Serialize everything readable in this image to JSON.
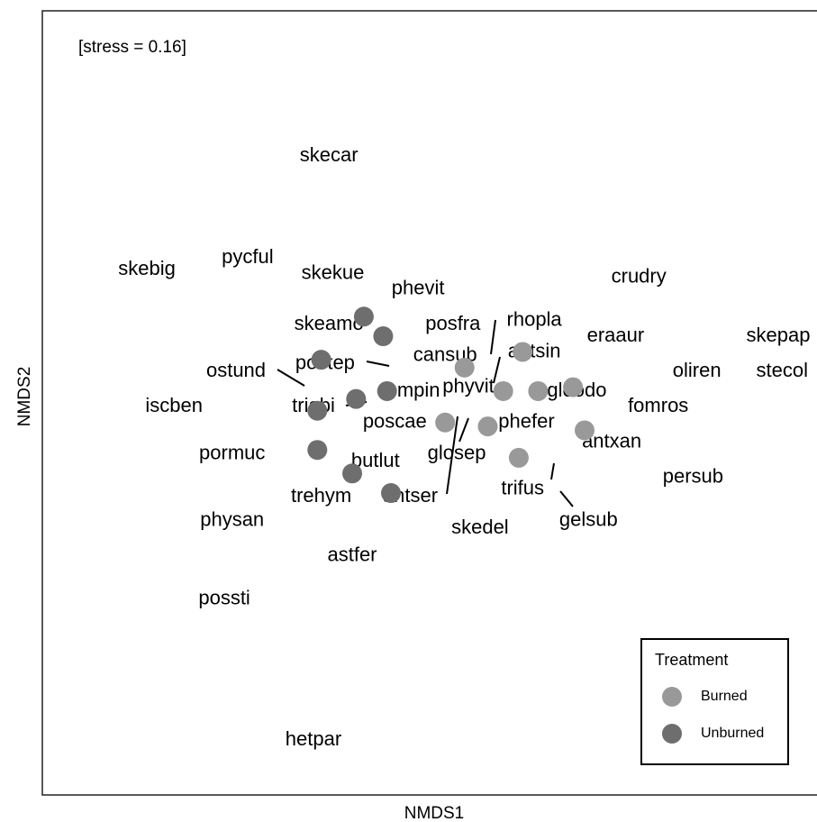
{
  "chart_data": {
    "type": "scatter",
    "annotation": "[stress = 0.16]",
    "xlabel": "NMDS1",
    "ylabel": "NMDS2",
    "xlim": [
      -1,
      1
    ],
    "ylim": [
      -1,
      1
    ],
    "legend_title": "Treatment",
    "legend": "bottom-right",
    "series": [
      {
        "name": "Burned",
        "color": "#999999",
        "x": [
          0.09,
          0.24,
          0.19,
          0.28,
          0.37,
          0.04,
          0.15,
          0.4,
          0.23
        ],
        "values": [
          0.09,
          0.13,
          0.03,
          0.03,
          0.04,
          -0.05,
          -0.06,
          -0.07,
          -0.14
        ]
      },
      {
        "name": "Unburned",
        "color": "#6e6e6e",
        "x": [
          -0.17,
          -0.12,
          -0.28,
          -0.11,
          -0.19,
          -0.29,
          -0.29,
          -0.2,
          -0.1
        ],
        "values": [
          0.22,
          0.17,
          0.11,
          0.03,
          0.01,
          -0.02,
          -0.12,
          -0.18,
          -0.23
        ]
      }
    ],
    "species": {
      "labels": [
        "skecar",
        "skebig",
        "pycful",
        "skekue",
        "phevit",
        "crudry",
        "skeamo",
        "posfra",
        "rhopla",
        "eraaur",
        "skepap",
        "cansub",
        "antsin",
        "postep",
        "ostund",
        "oliren",
        "stecol",
        "fompin",
        "phyvit",
        "gloodo",
        "iscben",
        "triabi",
        "fomros",
        "poscae",
        "phefer",
        "antxan",
        "glosep",
        "pormuc",
        "butlut",
        "persub",
        "trifus",
        "trehym",
        "antser",
        "gelsub",
        "skedel",
        "physan",
        "astfer",
        "possti",
        "hetpar"
      ],
      "x": [
        -0.26,
        -0.73,
        -0.47,
        -0.25,
        -0.03,
        0.54,
        -0.26,
        0.06,
        0.27,
        0.48,
        0.9,
        0.04,
        0.27,
        -0.27,
        -0.5,
        0.69,
        0.91,
        -0.05,
        0.1,
        0.38,
        -0.66,
        -0.3,
        0.59,
        -0.09,
        0.25,
        0.47,
        0.07,
        -0.51,
        -0.14,
        0.68,
        0.24,
        -0.28,
        -0.05,
        0.41,
        0.13,
        -0.51,
        -0.2,
        -0.53,
        -0.3
      ],
      "values": [
        0.63,
        0.34,
        0.37,
        0.33,
        0.29,
        0.32,
        0.2,
        0.2,
        0.21,
        0.17,
        0.17,
        0.12,
        0.13,
        0.1,
        0.08,
        0.08,
        0.08,
        0.03,
        0.04,
        0.03,
        -0.01,
        -0.01,
        -0.01,
        -0.05,
        -0.05,
        -0.1,
        -0.13,
        -0.13,
        -0.15,
        -0.19,
        -0.22,
        -0.24,
        -0.24,
        -0.3,
        -0.32,
        -0.3,
        -0.39,
        -0.5,
        -0.86
      ]
    }
  }
}
